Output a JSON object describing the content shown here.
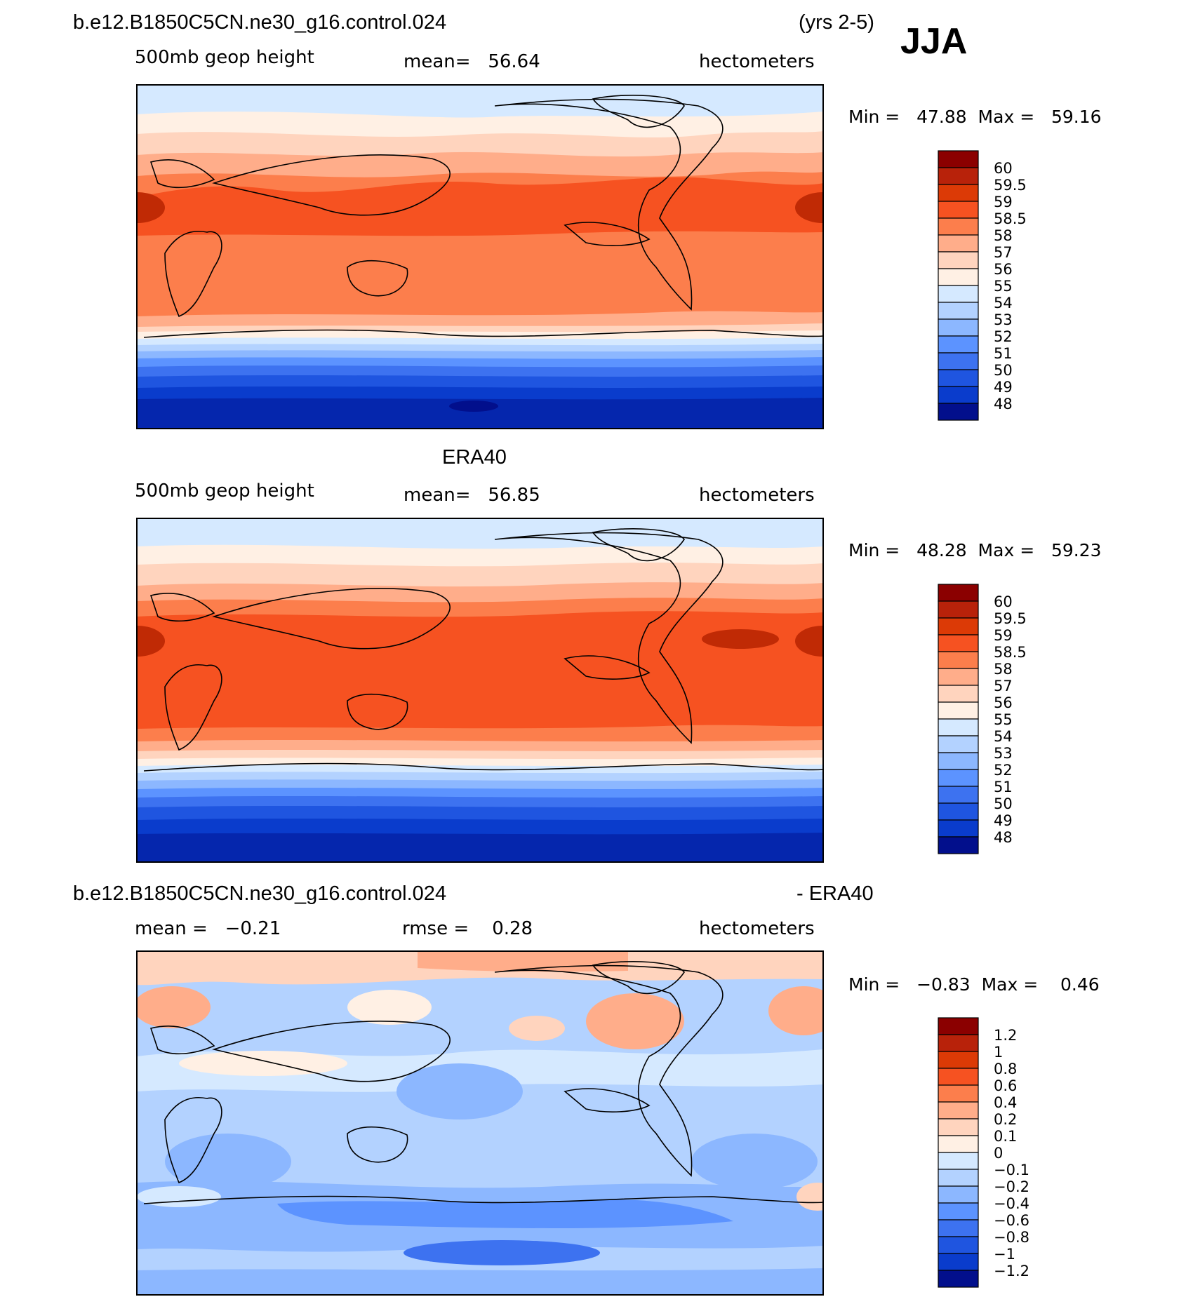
{
  "figure": {
    "season": "JJA"
  },
  "panels": [
    {
      "id": "model",
      "header_left": "b.e12.B1850C5CN.ne30_g16.control.024",
      "header_right": "(yrs 2-5)",
      "subtitle_left": "500mb geop height",
      "stat1": "mean=   56.64",
      "stat2": "",
      "units": "hectometers",
      "minmax": "Min =   47.88  Max =   59.16"
    },
    {
      "id": "obs",
      "header_left": "",
      "header_center": "ERA40",
      "header_right": "",
      "subtitle_left": "500mb geop height",
      "stat1": "mean=   56.85",
      "stat2": "",
      "units": "hectometers",
      "minmax": "Min =   48.28  Max =   59.23"
    },
    {
      "id": "diff",
      "header_left": "b.e12.B1850C5CN.ne30_g16.control.024",
      "header_right": "- ERA40",
      "subtitle_left": "mean =   −0.21",
      "stat1": "rmse =    0.28",
      "stat2": "",
      "units": "hectometers",
      "minmax": "Min =   −0.83  Max =    0.46"
    }
  ],
  "chart_data": [
    {
      "type": "heatmap",
      "title": "b.e12.B1850C5CN.ne30_g16.control.024 (yrs 2-5) JJA",
      "variable": "500mb geop height",
      "units": "hectometers",
      "mean": 56.64,
      "min": 47.88,
      "max": 59.16,
      "colorbar_levels": [
        "60",
        "59.5",
        "59",
        "58.5",
        "58",
        "57",
        "56",
        "55",
        "54",
        "53",
        "52",
        "51",
        "50",
        "49",
        "48"
      ],
      "latitude_bands_approx": [
        {
          "lat": 85,
          "value": 54.5
        },
        {
          "lat": 70,
          "value": 55.5
        },
        {
          "lat": 55,
          "value": 56.5
        },
        {
          "lat": 40,
          "value": 58.2
        },
        {
          "lat": 25,
          "value": 58.8
        },
        {
          "lat": 10,
          "value": 58.3
        },
        {
          "lat": -10,
          "value": 58.2
        },
        {
          "lat": -25,
          "value": 57.6
        },
        {
          "lat": -35,
          "value": 56.4
        },
        {
          "lat": -45,
          "value": 54.2
        },
        {
          "lat": -55,
          "value": 51.5
        },
        {
          "lat": -65,
          "value": 50.2
        },
        {
          "lat": -80,
          "value": 49.3
        }
      ]
    },
    {
      "type": "heatmap",
      "title": "ERA40",
      "variable": "500mb geop height",
      "units": "hectometers",
      "mean": 56.85,
      "min": 48.28,
      "max": 59.23,
      "colorbar_levels": [
        "60",
        "59.5",
        "59",
        "58.5",
        "58",
        "57",
        "56",
        "55",
        "54",
        "53",
        "52",
        "51",
        "50",
        "49",
        "48"
      ],
      "latitude_bands_approx": [
        {
          "lat": 85,
          "value": 54.5
        },
        {
          "lat": 70,
          "value": 55.5
        },
        {
          "lat": 55,
          "value": 56.8
        },
        {
          "lat": 40,
          "value": 58.3
        },
        {
          "lat": 25,
          "value": 58.9
        },
        {
          "lat": 10,
          "value": 58.8
        },
        {
          "lat": -10,
          "value": 58.7
        },
        {
          "lat": -25,
          "value": 57.8
        },
        {
          "lat": -35,
          "value": 56.4
        },
        {
          "lat": -45,
          "value": 54.3
        },
        {
          "lat": -55,
          "value": 51.6
        },
        {
          "lat": -65,
          "value": 50.3
        },
        {
          "lat": -80,
          "value": 49.4
        }
      ]
    },
    {
      "type": "heatmap",
      "title": "b.e12.B1850C5CN.ne30_g16.control.024 - ERA40",
      "units": "hectometers",
      "mean": -0.21,
      "rmse": 0.28,
      "min": -0.83,
      "max": 0.46,
      "colorbar_levels": [
        "1.2",
        "1",
        "0.8",
        "0.6",
        "0.4",
        "0.2",
        "0.1",
        "0",
        "−0.1",
        "−0.2",
        "−0.4",
        "−0.6",
        "−0.8",
        "−1",
        "−1.2"
      ],
      "latitude_bands_approx": [
        {
          "lat": 85,
          "value": 0.15
        },
        {
          "lat": 65,
          "value": -0.1
        },
        {
          "lat": 45,
          "value": -0.05
        },
        {
          "lat": 25,
          "value": -0.15
        },
        {
          "lat": 5,
          "value": -0.25
        },
        {
          "lat": -20,
          "value": -0.3
        },
        {
          "lat": -40,
          "value": -0.35
        },
        {
          "lat": -55,
          "value": -0.45
        },
        {
          "lat": -75,
          "value": -0.3
        }
      ]
    }
  ]
}
